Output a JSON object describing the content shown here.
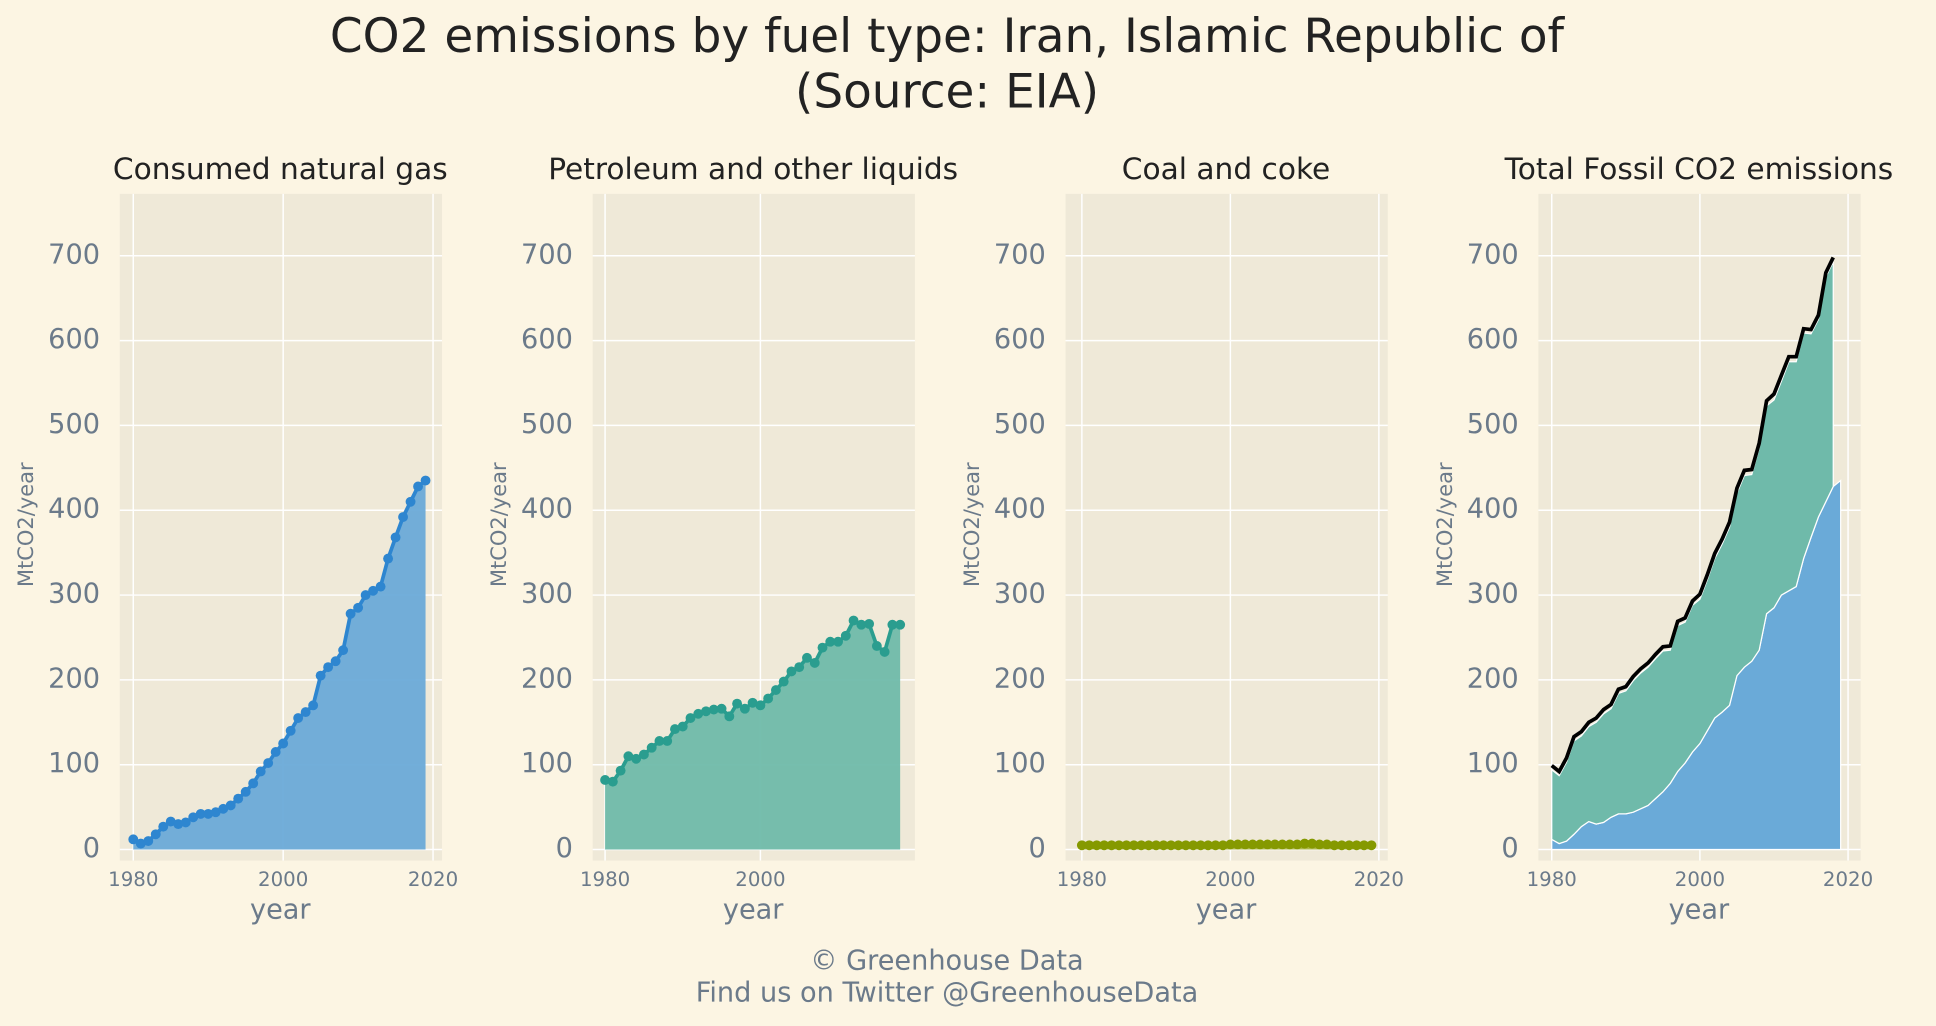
{
  "title": "CO2 emissions by fuel type: Iran, Islamic Republic of",
  "subtitle": "(Source: EIA)",
  "footer": [
    "© Greenhouse Data",
    "Find us on Twitter @GreenhouseData"
  ],
  "chart_data": [
    {
      "type": "area",
      "title": "Consumed natural gas",
      "xlabel": "year",
      "ylabel": "MtCO2/year",
      "grid": true,
      "xlim": [
        1978.2,
        2021.2
      ],
      "ylim": [
        -13,
        773
      ],
      "xticks": [
        1980,
        2000,
        2020
      ],
      "yticks": [
        0,
        100,
        200,
        300,
        400,
        500,
        600,
        700
      ],
      "x": [
        1980,
        1981,
        1982,
        1983,
        1984,
        1985,
        1986,
        1987,
        1988,
        1989,
        1990,
        1991,
        1992,
        1993,
        1994,
        1995,
        1996,
        1997,
        1998,
        1999,
        2000,
        2001,
        2002,
        2003,
        2004,
        2005,
        2006,
        2007,
        2008,
        2009,
        2010,
        2011,
        2012,
        2013,
        2014,
        2015,
        2016,
        2017,
        2018,
        2019
      ],
      "series": [
        {
          "color": "#2e86d0",
          "fill": "#6aaad8",
          "values": [
            12,
            7,
            10,
            18,
            27,
            33,
            30,
            32,
            38,
            42,
            42,
            44,
            48,
            52,
            60,
            68,
            78,
            92,
            102,
            115,
            125,
            140,
            155,
            162,
            170,
            205,
            215,
            222,
            235,
            278,
            285,
            300,
            305,
            310,
            343,
            368,
            392,
            410,
            428,
            435
          ]
        }
      ]
    },
    {
      "type": "area",
      "title": "Petroleum and other liquids",
      "xlabel": "year",
      "ylabel": "MtCO2/year",
      "grid": true,
      "xlim": [
        1978.4,
        2019.9
      ],
      "ylim": [
        -13,
        773
      ],
      "xticks": [
        1980,
        2000
      ],
      "yticks": [
        0,
        100,
        200,
        300,
        400,
        500,
        600,
        700
      ],
      "x": [
        1980,
        1981,
        1982,
        1983,
        1984,
        1985,
        1986,
        1987,
        1988,
        1989,
        1990,
        1991,
        1992,
        1993,
        1994,
        1995,
        1996,
        1997,
        1998,
        1999,
        2000,
        2001,
        2002,
        2003,
        2004,
        2005,
        2006,
        2007,
        2008,
        2009,
        2010,
        2011,
        2012,
        2013,
        2014,
        2015,
        2016,
        2017,
        2018
      ],
      "series": [
        {
          "color": "#2a9d8f",
          "fill": "#6fbaaa",
          "values": [
            82,
            80,
            93,
            110,
            107,
            112,
            120,
            128,
            128,
            142,
            145,
            155,
            160,
            163,
            165,
            166,
            157,
            172,
            166,
            173,
            170,
            178,
            188,
            198,
            210,
            215,
            226,
            220,
            238,
            245,
            245,
            252,
            270,
            265,
            266,
            240,
            233,
            265,
            265
          ]
        }
      ]
    },
    {
      "type": "area",
      "title": "Coal and coke",
      "xlabel": "year",
      "ylabel": "MtCO2/year",
      "grid": true,
      "xlim": [
        1977.8,
        2021.2
      ],
      "ylim": [
        -13,
        773
      ],
      "xticks": [
        1980,
        2000,
        2020
      ],
      "yticks": [
        0,
        100,
        200,
        300,
        400,
        500,
        600,
        700
      ],
      "x": [
        1980,
        1981,
        1982,
        1983,
        1984,
        1985,
        1986,
        1987,
        1988,
        1989,
        1990,
        1991,
        1992,
        1993,
        1994,
        1995,
        1996,
        1997,
        1998,
        1999,
        2000,
        2001,
        2002,
        2003,
        2004,
        2005,
        2006,
        2007,
        2008,
        2009,
        2010,
        2011,
        2012,
        2013,
        2014,
        2015,
        2016,
        2017,
        2018,
        2019
      ],
      "series": [
        {
          "color": "#859900",
          "fill": "#a8b340",
          "values": [
            5,
            5,
            5,
            5,
            5,
            5,
            5,
            5,
            5,
            5,
            5,
            5,
            5,
            5,
            5,
            5,
            5,
            5,
            5,
            5,
            6,
            6,
            6,
            6,
            6,
            6,
            6,
            6,
            6,
            6,
            7,
            7,
            6,
            6,
            5,
            5,
            5,
            5,
            5,
            5
          ]
        }
      ]
    },
    {
      "type": "stacked_area",
      "title": "Total Fossil CO2 emissions",
      "xlabel": "year",
      "ylabel": "MtCO2/year",
      "grid": true,
      "xlim": [
        1978.2,
        2021.7
      ],
      "ylim": [
        -13,
        773
      ],
      "xticks": [
        1980,
        2000,
        2020
      ],
      "yticks": [
        0,
        100,
        200,
        300,
        400,
        500,
        600,
        700
      ],
      "x": [
        1980,
        1981,
        1982,
        1983,
        1984,
        1985,
        1986,
        1987,
        1988,
        1989,
        1990,
        1991,
        1992,
        1993,
        1994,
        1995,
        1996,
        1997,
        1998,
        1999,
        2000,
        2001,
        2002,
        2003,
        2004,
        2005,
        2006,
        2007,
        2008,
        2009,
        2010,
        2011,
        2012,
        2013,
        2014,
        2015,
        2016,
        2017,
        2018,
        2019
      ],
      "series": [
        {
          "color": "#6aaad8",
          "values": [
            12,
            7,
            10,
            18,
            27,
            33,
            30,
            32,
            38,
            42,
            42,
            44,
            48,
            52,
            60,
            68,
            78,
            92,
            102,
            115,
            125,
            140,
            155,
            162,
            170,
            205,
            215,
            222,
            235,
            278,
            285,
            300,
            305,
            310,
            343,
            368,
            392,
            410,
            428,
            435
          ]
        },
        {
          "color": "#6fbaaa",
          "values": [
            82,
            80,
            93,
            110,
            107,
            112,
            120,
            128,
            128,
            142,
            145,
            155,
            160,
            163,
            165,
            166,
            157,
            172,
            166,
            173,
            170,
            178,
            188,
            198,
            210,
            215,
            226,
            220,
            238,
            245,
            245,
            252,
            270,
            265,
            266,
            240,
            233,
            265,
            265,
            null
          ]
        }
      ],
      "line": {
        "color": "#000000",
        "values": [
          99,
          92,
          108,
          133,
          139,
          150,
          155,
          165,
          171,
          189,
          192,
          204,
          213,
          220,
          230,
          239,
          240,
          269,
          273,
          293,
          301,
          324,
          349,
          366,
          386,
          426,
          447,
          448,
          479,
          529,
          537,
          559,
          581,
          581,
          614,
          613,
          630,
          680,
          698,
          null
        ]
      }
    }
  ]
}
